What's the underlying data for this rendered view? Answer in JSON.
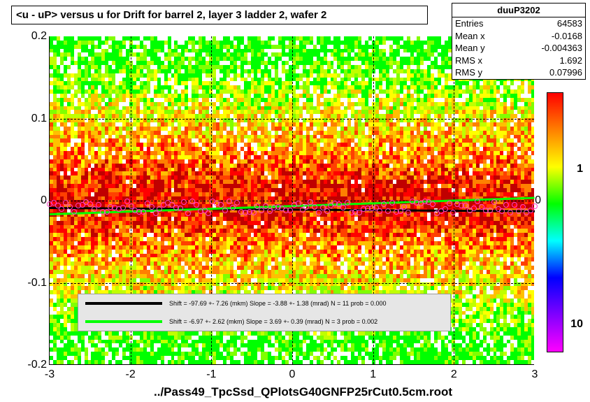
{
  "title": "<u - uP>       versus   u for Drift for barrel 2, layer 3 ladder 2, wafer 2",
  "footer": "../Pass49_TpcSsd_QPlotsG40GNFP25rCut0.5cm.root",
  "chart": {
    "type": "heatmap",
    "xlim": [
      -3,
      3
    ],
    "ylim": [
      -0.2,
      0.2
    ],
    "xticks": [
      -3,
      -2,
      -1,
      0,
      1,
      2,
      3
    ],
    "yticks": [
      -0.2,
      -0.1,
      0,
      0.1,
      0.2
    ],
    "right_y_mark": "0",
    "grid": true,
    "grid_color": "#000000",
    "palette": [
      "#ffffff",
      "#00ff00",
      "#80ff00",
      "#c0ff00",
      "#ffff00",
      "#ffc000",
      "#ff8000",
      "#ff4000",
      "#ff0000",
      "#c00000"
    ],
    "fit_lines": [
      {
        "color": "#000000",
        "y_at_xmin": -0.008,
        "y_at_xmax": -0.012,
        "width": 3,
        "label": "Shift =   -97.69 +- 7.26 (mkm) Slope =    -3.88 +- 1.38 (mrad)  N = 11 prob = 0.000"
      },
      {
        "color": "#00ff00",
        "y_at_xmin": -0.015,
        "y_at_xmax": 0.005,
        "width": 3,
        "label": "Shift =    -6.97 +- 2.62 (mkm) Slope =     3.69 +- 0.39 (mrad)  N = 3 prob = 0.002"
      }
    ],
    "marker_color": "#ff44cc"
  },
  "colorbar": {
    "scale": "log",
    "labels": [
      {
        "value": "1",
        "frac": 0.3
      },
      {
        "value": "10",
        "frac": 0.9
      }
    ],
    "gradient": [
      "#ff0000",
      "#ff8000",
      "#ffff00",
      "#00ff00",
      "#00ffff",
      "#0000ff",
      "#8000ff",
      "#ff00ff"
    ]
  },
  "stats": {
    "heading": "duuP3202",
    "rows": [
      {
        "k": "Entries",
        "v": "64583"
      },
      {
        "k": "Mean x",
        "v": "-0.0168"
      },
      {
        "k": "Mean y",
        "v": "-0.004363"
      },
      {
        "k": "RMS x",
        "v": "1.692"
      },
      {
        "k": "RMS y",
        "v": "0.07996"
      }
    ]
  }
}
